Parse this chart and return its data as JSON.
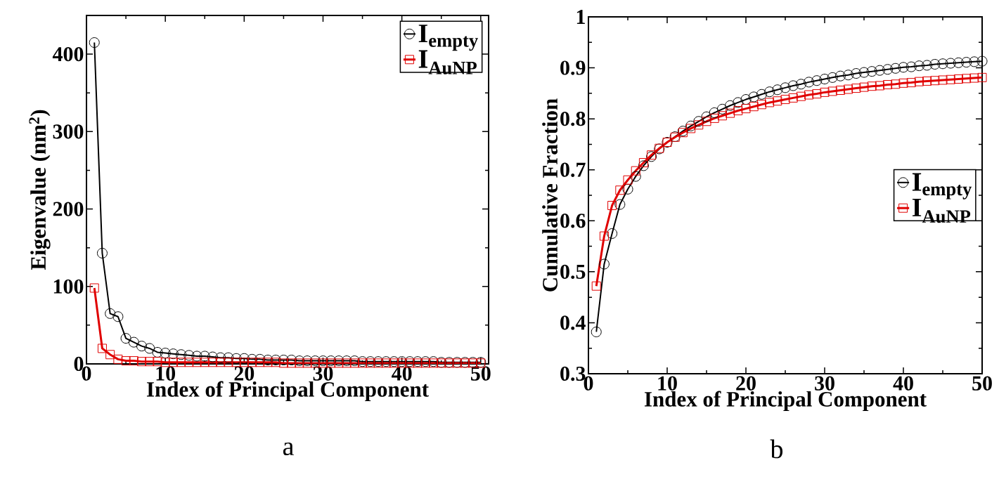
{
  "chart_data": [
    {
      "type": "line",
      "xlabel": "Index of Principal Component",
      "ylabel": "Eigenvalue (nm$^{2}$)",
      "annotations": [
        "a"
      ],
      "x": [
        1,
        2,
        3,
        4,
        5,
        6,
        7,
        8,
        9,
        10,
        11,
        12,
        13,
        14,
        15,
        16,
        17,
        18,
        19,
        20,
        21,
        22,
        23,
        24,
        25,
        26,
        27,
        28,
        29,
        30,
        31,
        32,
        33,
        34,
        35,
        36,
        37,
        38,
        39,
        40,
        41,
        42,
        43,
        44,
        45,
        46,
        47,
        48,
        49,
        50
      ],
      "xlim": [
        0,
        51
      ],
      "xticks": [
        0,
        10,
        20,
        30,
        40,
        50
      ],
      "ylim": [
        0,
        450
      ],
      "yticks": [
        0,
        100,
        200,
        300,
        400
      ],
      "legend": "top right",
      "line_style": "solid",
      "series": [
        {
          "name": "I$_{empty}$",
          "color": "#000000",
          "marker": "circle",
          "values": [
            415,
            143,
            65,
            61,
            33,
            28,
            23,
            20,
            15,
            14,
            13,
            12,
            11,
            10,
            10,
            9,
            8,
            8,
            7,
            7,
            6,
            6,
            5,
            5,
            5,
            5,
            4,
            4,
            4,
            4,
            4,
            4,
            4,
            4,
            3,
            3,
            3,
            3,
            3,
            3,
            3,
            3,
            3,
            3,
            2,
            2,
            2,
            2,
            2,
            2
          ]
        },
        {
          "name": "I$_{AuNP}$",
          "color": "#e00000",
          "marker": "square",
          "values": [
            98,
            20,
            12,
            6,
            4,
            4,
            3,
            3,
            3,
            2,
            2,
            2,
            2,
            2,
            2,
            2,
            2,
            2,
            2,
            2,
            2,
            2,
            2,
            2,
            1,
            1,
            1,
            1,
            1,
            1,
            1,
            1,
            1,
            1,
            1,
            1,
            1,
            1,
            1,
            1,
            1,
            1,
            1,
            1,
            1,
            1,
            1,
            1,
            1,
            1
          ]
        }
      ]
    },
    {
      "type": "line",
      "xlabel": "Index of Principal Component",
      "ylabel": "Cumulative Fraction",
      "annotations": [
        "b"
      ],
      "x": [
        1,
        2,
        3,
        4,
        5,
        6,
        7,
        8,
        9,
        10,
        11,
        12,
        13,
        14,
        15,
        16,
        17,
        18,
        19,
        20,
        21,
        22,
        23,
        24,
        25,
        26,
        27,
        28,
        29,
        30,
        31,
        32,
        33,
        34,
        35,
        36,
        37,
        38,
        39,
        40,
        41,
        42,
        43,
        44,
        45,
        46,
        47,
        48,
        49,
        50
      ],
      "xlim": [
        0,
        50
      ],
      "xticks": [
        0,
        10,
        20,
        30,
        40,
        50
      ],
      "ylim": [
        0.3,
        1
      ],
      "yticks": [
        0.3,
        0.4,
        0.5,
        0.6,
        0.7,
        0.8,
        0.9,
        1
      ],
      "legend": "right",
      "line_style": "solid",
      "series": [
        {
          "name": "I$_{empty}$",
          "color": "#000000",
          "marker": "circle",
          "values": [
            0.382,
            0.515,
            0.575,
            0.632,
            0.662,
            0.687,
            0.708,
            0.726,
            0.741,
            0.754,
            0.765,
            0.776,
            0.786,
            0.795,
            0.804,
            0.812,
            0.819,
            0.826,
            0.832,
            0.838,
            0.843,
            0.848,
            0.853,
            0.857,
            0.861,
            0.865,
            0.868,
            0.872,
            0.875,
            0.878,
            0.881,
            0.884,
            0.886,
            0.889,
            0.891,
            0.893,
            0.895,
            0.897,
            0.899,
            0.901,
            0.902,
            0.904,
            0.905,
            0.907,
            0.908,
            0.909,
            0.91,
            0.911,
            0.912,
            0.913
          ]
        },
        {
          "name": "I$_{AuNP}$",
          "color": "#e00000",
          "marker": "square",
          "values": [
            0.472,
            0.57,
            0.63,
            0.66,
            0.68,
            0.698,
            0.714,
            0.729,
            0.742,
            0.754,
            0.764,
            0.773,
            0.781,
            0.788,
            0.795,
            0.801,
            0.806,
            0.811,
            0.816,
            0.82,
            0.824,
            0.828,
            0.832,
            0.835,
            0.838,
            0.841,
            0.844,
            0.847,
            0.849,
            0.852,
            0.854,
            0.856,
            0.858,
            0.86,
            0.862,
            0.864,
            0.865,
            0.867,
            0.868,
            0.87,
            0.871,
            0.873,
            0.874,
            0.875,
            0.876,
            0.877,
            0.878,
            0.879,
            0.88,
            0.881
          ]
        }
      ]
    }
  ]
}
